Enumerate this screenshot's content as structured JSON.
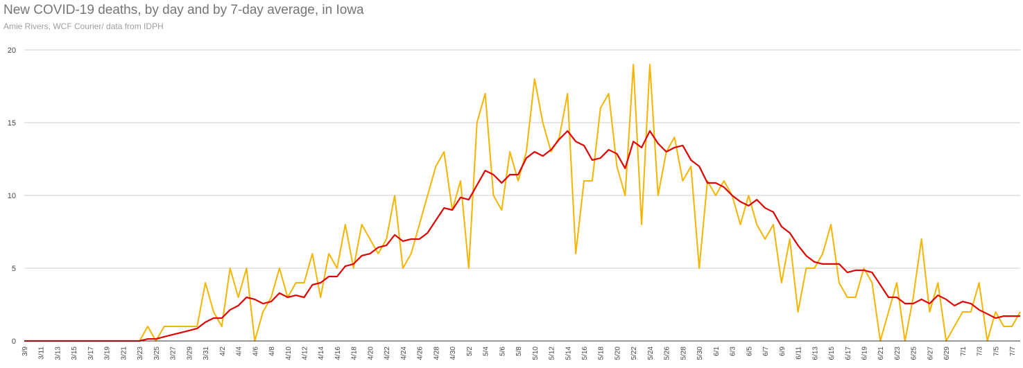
{
  "title": "New COVID-19 deaths, by day and by 7-day average, in Iowa",
  "subtitle": "Amie Rivers, WCF Courier/ data from IDPH",
  "chart_data": {
    "type": "line",
    "title": "New COVID-19 deaths, by day and by 7-day average, in Iowa",
    "subtitle": "Amie Rivers, WCF Courier/ data from IDPH",
    "xlabel": "",
    "ylabel": "",
    "ylim": [
      0,
      20
    ],
    "yticks": [
      0,
      5,
      10,
      15,
      20
    ],
    "grid": true,
    "legend": "none",
    "x": [
      "3/9",
      "3/10",
      "3/11",
      "3/12",
      "3/13",
      "3/14",
      "3/15",
      "3/16",
      "3/17",
      "3/18",
      "3/19",
      "3/20",
      "3/21",
      "3/22",
      "3/23",
      "3/24",
      "3/25",
      "3/26",
      "3/27",
      "3/28",
      "3/29",
      "3/30",
      "3/31",
      "4/1",
      "4/2",
      "4/3",
      "4/4",
      "4/5",
      "4/6",
      "4/7",
      "4/8",
      "4/9",
      "4/10",
      "4/11",
      "4/12",
      "4/13",
      "4/14",
      "4/15",
      "4/16",
      "4/17",
      "4/18",
      "4/19",
      "4/20",
      "4/21",
      "4/22",
      "4/23",
      "4/24",
      "4/25",
      "4/26",
      "4/27",
      "4/28",
      "4/29",
      "4/30",
      "5/1",
      "5/2",
      "5/3",
      "5/4",
      "5/5",
      "5/6",
      "5/7",
      "5/8",
      "5/9",
      "5/10",
      "5/11",
      "5/12",
      "5/13",
      "5/14",
      "5/15",
      "5/16",
      "5/17",
      "5/18",
      "5/19",
      "5/20",
      "5/21",
      "5/22",
      "5/23",
      "5/24",
      "5/25",
      "5/26",
      "5/27",
      "5/28",
      "5/29",
      "5/30",
      "5/31",
      "6/1",
      "6/2",
      "6/3",
      "6/4",
      "6/5",
      "6/6",
      "6/7",
      "6/8",
      "6/9",
      "6/10",
      "6/11",
      "6/12",
      "6/13",
      "6/14",
      "6/15",
      "6/16",
      "6/17",
      "6/18",
      "6/19",
      "6/20",
      "6/21",
      "6/22",
      "6/23",
      "6/24",
      "6/25",
      "6/26",
      "6/27",
      "6/28",
      "6/29",
      "6/30",
      "7/1",
      "7/2",
      "7/3",
      "7/4",
      "7/5",
      "7/6",
      "7/7",
      "7/8"
    ],
    "tick_labels": [
      "3/9",
      "3/11",
      "3/13",
      "3/15",
      "3/17",
      "3/19",
      "3/21",
      "3/23",
      "3/25",
      "3/27",
      "3/29",
      "3/31",
      "4/2",
      "4/4",
      "4/6",
      "4/8",
      "4/10",
      "4/12",
      "4/14",
      "4/16",
      "4/18",
      "4/20",
      "4/22",
      "4/24",
      "4/26",
      "4/28",
      "4/30",
      "5/2",
      "5/4",
      "5/6",
      "5/8",
      "5/10",
      "5/12",
      "5/14",
      "5/16",
      "5/18",
      "5/20",
      "5/22",
      "5/24",
      "5/26",
      "5/28",
      "5/30",
      "6/1",
      "6/3",
      "6/5",
      "6/7",
      "6/9",
      "6/11",
      "6/13",
      "6/15",
      "6/17",
      "6/19",
      "6/21",
      "6/23",
      "6/25",
      "6/27",
      "6/29",
      "7/1",
      "7/3",
      "7/5",
      "7/7"
    ],
    "series": [
      {
        "color": "#f4b400",
        "values": [
          0,
          0,
          0,
          0,
          0,
          0,
          0,
          0,
          0,
          0,
          0,
          0,
          0,
          0,
          0,
          1,
          0,
          1,
          1,
          1,
          1,
          1,
          4,
          2,
          1,
          5,
          3,
          5,
          0,
          2,
          3,
          5,
          3,
          4,
          4,
          6,
          3,
          6,
          5,
          8,
          5,
          8,
          7,
          6,
          7,
          10,
          5,
          6,
          8,
          10,
          12,
          13,
          9,
          11,
          5,
          15,
          17,
          10,
          9,
          13,
          11,
          13,
          18,
          15,
          13,
          14,
          17,
          6,
          11,
          11,
          16,
          17,
          12,
          10,
          19,
          8,
          19,
          10,
          13,
          14,
          11,
          12,
          5,
          11,
          10,
          11,
          10,
          8,
          10,
          8,
          7,
          8,
          4,
          7,
          2,
          5,
          5,
          6,
          8,
          4,
          3,
          3,
          5,
          4,
          0,
          2,
          4,
          0,
          3,
          7,
          2,
          4,
          0,
          1,
          2,
          2,
          4,
          0,
          2,
          1,
          1,
          2
        ]
      },
      {
        "color": "#e00000",
        "values": [
          0,
          0,
          0,
          0,
          0,
          0,
          0,
          0,
          0,
          0,
          0,
          0,
          0,
          0,
          0,
          0.14,
          0.14,
          0.29,
          0.43,
          0.57,
          0.71,
          0.86,
          1.29,
          1.57,
          1.57,
          2.14,
          2.43,
          3,
          2.86,
          2.57,
          2.71,
          3.29,
          3,
          3.14,
          3,
          3.86,
          4,
          4.43,
          4.43,
          5.14,
          5.29,
          5.86,
          6,
          6.43,
          6.57,
          7.29,
          6.86,
          7,
          7,
          7.43,
          8.29,
          9.14,
          9,
          9.86,
          9.71,
          10.71,
          11.71,
          11.43,
          10.86,
          11.43,
          11.43,
          12.57,
          13,
          12.71,
          13.14,
          13.86,
          14.43,
          13.71,
          13.43,
          12.43,
          12.57,
          13.14,
          12.86,
          11.86,
          13.71,
          13.29,
          14.43,
          13.57,
          13,
          13.29,
          13.43,
          12.43,
          12,
          10.86,
          10.86,
          10.57,
          10,
          9.57,
          9.29,
          9.71,
          9.14,
          8.86,
          7.86,
          7.43,
          6.57,
          5.86,
          5.43,
          5.29,
          5.29,
          5.29,
          4.71,
          4.86,
          4.86,
          4.71,
          3.86,
          3,
          3,
          2.57,
          2.57,
          2.86,
          2.57,
          3.14,
          2.86,
          2.43,
          2.71,
          2.57,
          2.14,
          1.86,
          1.57,
          1.71,
          1.71,
          1.71
        ]
      }
    ]
  }
}
